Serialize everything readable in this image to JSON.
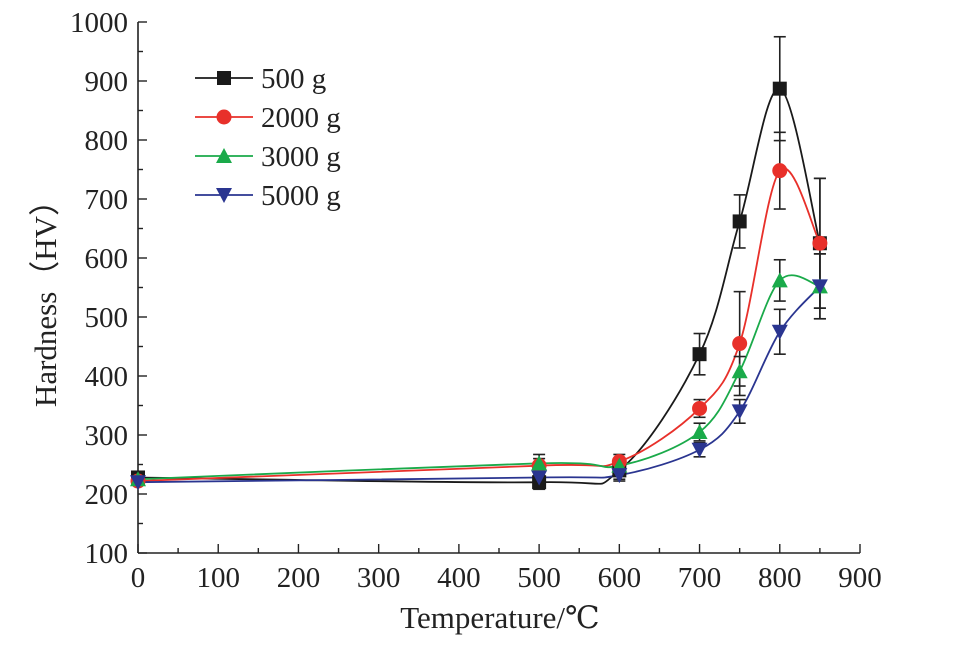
{
  "chart_data": {
    "type": "line",
    "xlabel": "Temperature/℃",
    "ylabel": "Hardness（HV）",
    "xlim": [
      0,
      900
    ],
    "ylim": [
      100,
      1000
    ],
    "xticks": [
      "0",
      "100",
      "200",
      "300",
      "400",
      "500",
      "600",
      "700",
      "800",
      "900"
    ],
    "yticks": [
      "100",
      "200",
      "300",
      "400",
      "500",
      "600",
      "700",
      "800",
      "900",
      "1000"
    ],
    "x": [
      0,
      500,
      600,
      700,
      750,
      800,
      850
    ],
    "grid": false,
    "legend_position": "top-left",
    "series": [
      {
        "name": "500 g",
        "color": "#1a1a1a",
        "marker": "square",
        "values": [
          228,
          220,
          240,
          437,
          662,
          887,
          625
        ],
        "error": [
          6,
          12,
          15,
          35,
          45,
          88,
          110
        ]
      },
      {
        "name": "2000 g",
        "color": "#e8302a",
        "marker": "circle",
        "values": [
          222,
          248,
          255,
          345,
          455,
          748,
          625
        ],
        "error": [
          5,
          12,
          12,
          15,
          88,
          65,
          110
        ]
      },
      {
        "name": "3000 g",
        "color": "#1aaa4a",
        "marker": "triangle-up",
        "values": [
          225,
          252,
          248,
          305,
          408,
          562,
          552
        ],
        "error": [
          5,
          15,
          12,
          15,
          25,
          35,
          55
        ]
      },
      {
        "name": "5000 g",
        "color": "#2a3590",
        "marker": "triangle-down",
        "values": [
          220,
          228,
          232,
          275,
          340,
          475,
          552
        ],
        "error": [
          5,
          10,
          10,
          12,
          20,
          38,
          55
        ]
      }
    ]
  }
}
